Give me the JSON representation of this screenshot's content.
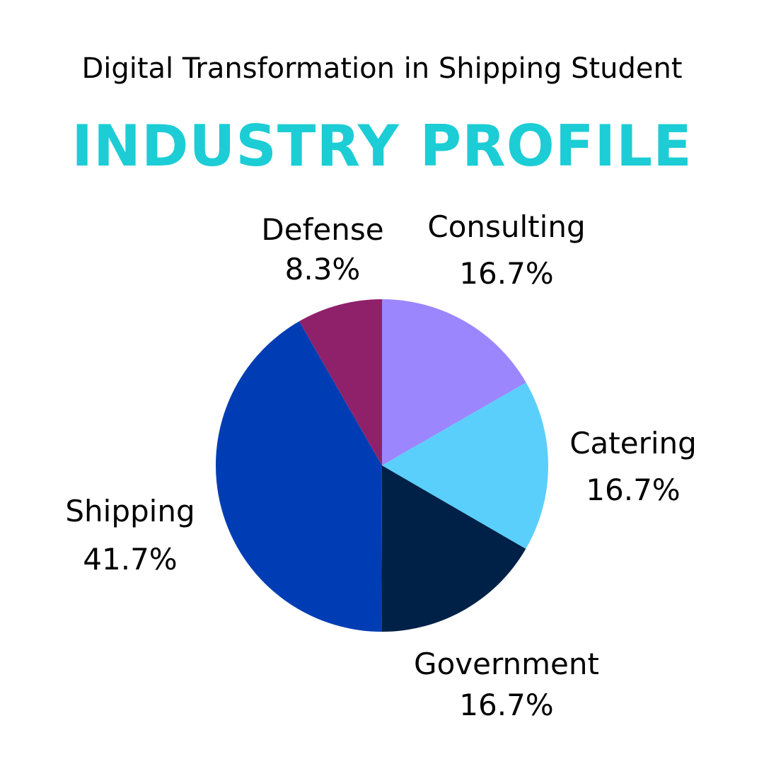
{
  "header": {
    "subtitle": "Digital Transformation in Shipping Student",
    "title": "INDUSTRY PROFILE"
  },
  "chart_data": {
    "type": "pie",
    "start_angle_deg": 0,
    "direction": "clockwise",
    "slices": [
      {
        "label": "Consulting",
        "value": 16.7,
        "value_label": "16.7%",
        "color": "#9b86fd"
      },
      {
        "label": "Catering",
        "value": 16.7,
        "value_label": "16.7%",
        "color": "#5bcffb"
      },
      {
        "label": "Government",
        "value": 16.7,
        "value_label": "16.7%",
        "color": "#002147"
      },
      {
        "label": "Shipping",
        "value": 41.7,
        "value_label": "41.7%",
        "color": "#003db4"
      },
      {
        "label": "Defense",
        "value": 8.3,
        "value_label": "8.3%",
        "color": "#8f216b"
      }
    ]
  }
}
